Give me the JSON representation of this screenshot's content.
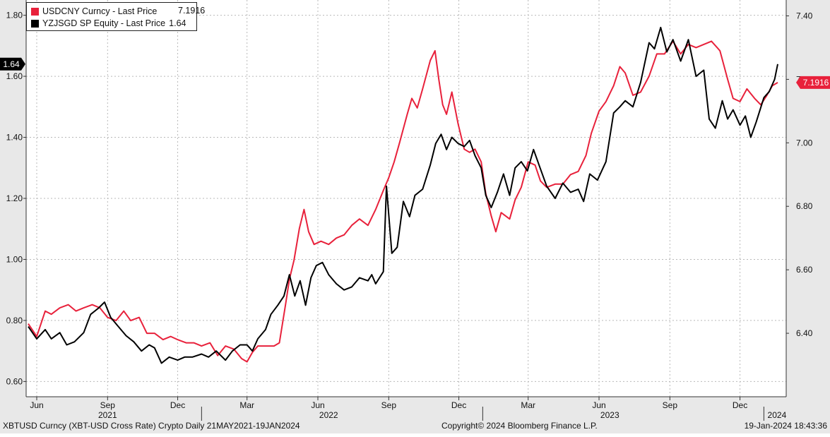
{
  "chart_data": {
    "type": "line",
    "title": "",
    "xlabel": "",
    "ylabel": "",
    "x_range": [
      "2021-05-21",
      "2024-01-19"
    ],
    "y_left_lim": [
      0.55,
      1.85
    ],
    "y_right_lim": [
      6.2,
      7.45
    ],
    "y_left_ticks": [
      "0.60",
      "0.80",
      "1.00",
      "1.20",
      "1.40",
      "1.60",
      "1.80"
    ],
    "y_right_ticks": [
      "6.40",
      "6.60",
      "6.80",
      "7.00",
      "7.20",
      "7.40"
    ],
    "x_month_ticks": [
      {
        "label": "Jun",
        "date": "2021-06-01"
      },
      {
        "label": "Sep",
        "date": "2021-09-01"
      },
      {
        "label": "Dec",
        "date": "2021-12-01"
      },
      {
        "label": "Mar",
        "date": "2022-03-01"
      },
      {
        "label": "Jun",
        "date": "2022-06-01"
      },
      {
        "label": "Sep",
        "date": "2022-09-01"
      },
      {
        "label": "Dec",
        "date": "2022-12-01"
      },
      {
        "label": "Mar",
        "date": "2023-03-01"
      },
      {
        "label": "Jun",
        "date": "2023-06-01"
      },
      {
        "label": "Sep",
        "date": "2023-09-01"
      },
      {
        "label": "Dec",
        "date": "2023-12-01"
      }
    ],
    "x_year_ticks": [
      {
        "label": "2021",
        "date": "2021-09-01",
        "sep": null
      },
      {
        "label": "2022",
        "date": "2022-06-15",
        "sep": "2022-01-01"
      },
      {
        "label": "2023",
        "date": "2023-06-15",
        "sep": "2023-01-01"
      },
      {
        "label": "2024",
        "date": "2024-01-18",
        "sep": "2024-01-01"
      }
    ],
    "series": [
      {
        "name": "USDCNY Curncy - Last Price",
        "last_value": "7.1916",
        "color": "#e8213b",
        "axis": "right",
        "points": [
          [
            "2021-05-21",
            6.43
          ],
          [
            "2021-06-01",
            6.39
          ],
          [
            "2021-06-12",
            6.47
          ],
          [
            "2021-06-20",
            6.46
          ],
          [
            "2021-07-01",
            6.48
          ],
          [
            "2021-07-12",
            6.49
          ],
          [
            "2021-07-22",
            6.47
          ],
          [
            "2021-08-01",
            6.48
          ],
          [
            "2021-08-12",
            6.49
          ],
          [
            "2021-08-22",
            6.48
          ],
          [
            "2021-09-01",
            6.45
          ],
          [
            "2021-09-12",
            6.44
          ],
          [
            "2021-09-22",
            6.47
          ],
          [
            "2021-10-01",
            6.44
          ],
          [
            "2021-10-12",
            6.45
          ],
          [
            "2021-10-22",
            6.4
          ],
          [
            "2021-11-01",
            6.4
          ],
          [
            "2021-11-12",
            6.38
          ],
          [
            "2021-11-22",
            6.39
          ],
          [
            "2021-12-01",
            6.38
          ],
          [
            "2021-12-12",
            6.37
          ],
          [
            "2021-12-22",
            6.37
          ],
          [
            "2022-01-01",
            6.36
          ],
          [
            "2022-01-12",
            6.37
          ],
          [
            "2022-01-22",
            6.33
          ],
          [
            "2022-02-01",
            6.36
          ],
          [
            "2022-02-12",
            6.35
          ],
          [
            "2022-02-22",
            6.32
          ],
          [
            "2022-03-01",
            6.31
          ],
          [
            "2022-03-08",
            6.34
          ],
          [
            "2022-03-15",
            6.36
          ],
          [
            "2022-03-25",
            6.36
          ],
          [
            "2022-04-05",
            6.36
          ],
          [
            "2022-04-12",
            6.37
          ],
          [
            "2022-04-20",
            6.49
          ],
          [
            "2022-04-25",
            6.57
          ],
          [
            "2022-05-01",
            6.63
          ],
          [
            "2022-05-08",
            6.73
          ],
          [
            "2022-05-14",
            6.79
          ],
          [
            "2022-05-20",
            6.72
          ],
          [
            "2022-05-27",
            6.68
          ],
          [
            "2022-06-05",
            6.69
          ],
          [
            "2022-06-15",
            6.68
          ],
          [
            "2022-06-25",
            6.7
          ],
          [
            "2022-07-05",
            6.71
          ],
          [
            "2022-07-15",
            6.74
          ],
          [
            "2022-07-25",
            6.76
          ],
          [
            "2022-08-05",
            6.74
          ],
          [
            "2022-08-15",
            6.79
          ],
          [
            "2022-08-25",
            6.85
          ],
          [
            "2022-09-01",
            6.89
          ],
          [
            "2022-09-08",
            6.94
          ],
          [
            "2022-09-15",
            7.0
          ],
          [
            "2022-09-25",
            7.09
          ],
          [
            "2022-10-01",
            7.14
          ],
          [
            "2022-10-08",
            7.11
          ],
          [
            "2022-10-15",
            7.17
          ],
          [
            "2022-10-25",
            7.26
          ],
          [
            "2022-10-31",
            7.29
          ],
          [
            "2022-11-05",
            7.2
          ],
          [
            "2022-11-10",
            7.12
          ],
          [
            "2022-11-15",
            7.09
          ],
          [
            "2022-11-22",
            7.16
          ],
          [
            "2022-11-30",
            7.06
          ],
          [
            "2022-12-08",
            6.98
          ],
          [
            "2022-12-15",
            6.97
          ],
          [
            "2022-12-22",
            6.98
          ],
          [
            "2022-12-30",
            6.94
          ],
          [
            "2023-01-05",
            6.84
          ],
          [
            "2023-01-12",
            6.77
          ],
          [
            "2023-01-18",
            6.72
          ],
          [
            "2023-01-25",
            6.78
          ],
          [
            "2023-02-05",
            6.76
          ],
          [
            "2023-02-12",
            6.82
          ],
          [
            "2023-02-20",
            6.86
          ],
          [
            "2023-03-01",
            6.94
          ],
          [
            "2023-03-10",
            6.93
          ],
          [
            "2023-03-17",
            6.88
          ],
          [
            "2023-03-25",
            6.86
          ],
          [
            "2023-04-05",
            6.87
          ],
          [
            "2023-04-15",
            6.87
          ],
          [
            "2023-04-25",
            6.9
          ],
          [
            "2023-05-05",
            6.91
          ],
          [
            "2023-05-15",
            6.96
          ],
          [
            "2023-05-22",
            7.03
          ],
          [
            "2023-06-01",
            7.1
          ],
          [
            "2023-06-10",
            7.13
          ],
          [
            "2023-06-20",
            7.18
          ],
          [
            "2023-06-28",
            7.24
          ],
          [
            "2023-07-05",
            7.22
          ],
          [
            "2023-07-15",
            7.15
          ],
          [
            "2023-07-25",
            7.16
          ],
          [
            "2023-08-05",
            7.21
          ],
          [
            "2023-08-15",
            7.28
          ],
          [
            "2023-08-25",
            7.28
          ],
          [
            "2023-09-05",
            7.32
          ],
          [
            "2023-09-15",
            7.28
          ],
          [
            "2023-09-25",
            7.31
          ],
          [
            "2023-10-05",
            7.3
          ],
          [
            "2023-10-15",
            7.31
          ],
          [
            "2023-10-25",
            7.32
          ],
          [
            "2023-11-05",
            7.29
          ],
          [
            "2023-11-15",
            7.2
          ],
          [
            "2023-11-22",
            7.14
          ],
          [
            "2023-12-01",
            7.13
          ],
          [
            "2023-12-10",
            7.17
          ],
          [
            "2023-12-20",
            7.14
          ],
          [
            "2023-12-28",
            7.12
          ],
          [
            "2024-01-05",
            7.15
          ],
          [
            "2024-01-12",
            7.18
          ],
          [
            "2024-01-19",
            7.19
          ]
        ]
      },
      {
        "name": "YZJSGD SP Equity - Last Price",
        "last_value": "1.64",
        "color": "#000000",
        "axis": "left",
        "points": [
          [
            "2021-05-21",
            0.78
          ],
          [
            "2021-06-01",
            0.74
          ],
          [
            "2021-06-12",
            0.77
          ],
          [
            "2021-06-20",
            0.74
          ],
          [
            "2021-07-01",
            0.76
          ],
          [
            "2021-07-10",
            0.72
          ],
          [
            "2021-07-20",
            0.73
          ],
          [
            "2021-08-01",
            0.76
          ],
          [
            "2021-08-10",
            0.82
          ],
          [
            "2021-08-20",
            0.84
          ],
          [
            "2021-08-28",
            0.86
          ],
          [
            "2021-09-05",
            0.81
          ],
          [
            "2021-09-15",
            0.78
          ],
          [
            "2021-09-25",
            0.75
          ],
          [
            "2021-10-05",
            0.73
          ],
          [
            "2021-10-15",
            0.7
          ],
          [
            "2021-10-25",
            0.72
          ],
          [
            "2021-11-01",
            0.71
          ],
          [
            "2021-11-10",
            0.66
          ],
          [
            "2021-11-20",
            0.68
          ],
          [
            "2021-12-01",
            0.67
          ],
          [
            "2021-12-10",
            0.68
          ],
          [
            "2021-12-20",
            0.68
          ],
          [
            "2022-01-01",
            0.69
          ],
          [
            "2022-01-10",
            0.68
          ],
          [
            "2022-01-20",
            0.7
          ],
          [
            "2022-02-01",
            0.67
          ],
          [
            "2022-02-10",
            0.7
          ],
          [
            "2022-02-20",
            0.72
          ],
          [
            "2022-03-01",
            0.72
          ],
          [
            "2022-03-08",
            0.7
          ],
          [
            "2022-03-15",
            0.74
          ],
          [
            "2022-03-25",
            0.77
          ],
          [
            "2022-04-01",
            0.82
          ],
          [
            "2022-04-10",
            0.85
          ],
          [
            "2022-04-18",
            0.88
          ],
          [
            "2022-04-25",
            0.95
          ],
          [
            "2022-05-02",
            0.88
          ],
          [
            "2022-05-09",
            0.93
          ],
          [
            "2022-05-16",
            0.85
          ],
          [
            "2022-05-23",
            0.94
          ],
          [
            "2022-05-30",
            0.98
          ],
          [
            "2022-06-07",
            0.99
          ],
          [
            "2022-06-15",
            0.95
          ],
          [
            "2022-06-25",
            0.92
          ],
          [
            "2022-07-05",
            0.9
          ],
          [
            "2022-07-15",
            0.91
          ],
          [
            "2022-07-25",
            0.94
          ],
          [
            "2022-08-05",
            0.93
          ],
          [
            "2022-08-10",
            0.95
          ],
          [
            "2022-08-15",
            0.92
          ],
          [
            "2022-08-25",
            0.96
          ],
          [
            "2022-08-29",
            1.24
          ],
          [
            "2022-09-05",
            1.02
          ],
          [
            "2022-09-12",
            1.04
          ],
          [
            "2022-09-20",
            1.19
          ],
          [
            "2022-09-28",
            1.14
          ],
          [
            "2022-10-05",
            1.21
          ],
          [
            "2022-10-15",
            1.23
          ],
          [
            "2022-10-25",
            1.31
          ],
          [
            "2022-11-01",
            1.38
          ],
          [
            "2022-11-08",
            1.41
          ],
          [
            "2022-11-15",
            1.36
          ],
          [
            "2022-11-22",
            1.4
          ],
          [
            "2022-11-30",
            1.38
          ],
          [
            "2022-12-08",
            1.37
          ],
          [
            "2022-12-15",
            1.39
          ],
          [
            "2022-12-22",
            1.34
          ],
          [
            "2022-12-30",
            1.3
          ],
          [
            "2023-01-05",
            1.21
          ],
          [
            "2023-01-12",
            1.17
          ],
          [
            "2023-01-20",
            1.22
          ],
          [
            "2023-01-28",
            1.28
          ],
          [
            "2023-02-05",
            1.21
          ],
          [
            "2023-02-12",
            1.3
          ],
          [
            "2023-02-20",
            1.32
          ],
          [
            "2023-02-28",
            1.29
          ],
          [
            "2023-03-08",
            1.36
          ],
          [
            "2023-03-15",
            1.31
          ],
          [
            "2023-03-25",
            1.24
          ],
          [
            "2023-04-05",
            1.2
          ],
          [
            "2023-04-15",
            1.25
          ],
          [
            "2023-04-25",
            1.22
          ],
          [
            "2023-05-05",
            1.23
          ],
          [
            "2023-05-12",
            1.19
          ],
          [
            "2023-05-20",
            1.28
          ],
          [
            "2023-05-30",
            1.26
          ],
          [
            "2023-06-10",
            1.32
          ],
          [
            "2023-06-20",
            1.48
          ],
          [
            "2023-06-28",
            1.5
          ],
          [
            "2023-07-05",
            1.52
          ],
          [
            "2023-07-15",
            1.5
          ],
          [
            "2023-07-25",
            1.58
          ],
          [
            "2023-08-05",
            1.71
          ],
          [
            "2023-08-12",
            1.69
          ],
          [
            "2023-08-20",
            1.76
          ],
          [
            "2023-08-28",
            1.68
          ],
          [
            "2023-09-05",
            1.72
          ],
          [
            "2023-09-15",
            1.65
          ],
          [
            "2023-09-25",
            1.72
          ],
          [
            "2023-10-05",
            1.6
          ],
          [
            "2023-10-15",
            1.62
          ],
          [
            "2023-10-22",
            1.46
          ],
          [
            "2023-10-30",
            1.43
          ],
          [
            "2023-11-08",
            1.52
          ],
          [
            "2023-11-15",
            1.46
          ],
          [
            "2023-11-22",
            1.49
          ],
          [
            "2023-12-01",
            1.44
          ],
          [
            "2023-12-08",
            1.47
          ],
          [
            "2023-12-15",
            1.4
          ],
          [
            "2023-12-22",
            1.45
          ],
          [
            "2024-01-01",
            1.53
          ],
          [
            "2024-01-08",
            1.55
          ],
          [
            "2024-01-15",
            1.59
          ],
          [
            "2024-01-19",
            1.64
          ]
        ]
      }
    ]
  },
  "footer": {
    "left": "XBTUSD Curncy (XBT-USD Cross Rate) Crypto  Daily 21MAY2021-19JAN2024",
    "center": "Copyright© 2024 Bloomberg Finance L.P.",
    "right": "19-Jan-2024 18:43:36"
  },
  "colors": {
    "plot_bg": "#ffffff",
    "grid": "#b9b9b9",
    "axis_band": "#e8e8e8"
  }
}
